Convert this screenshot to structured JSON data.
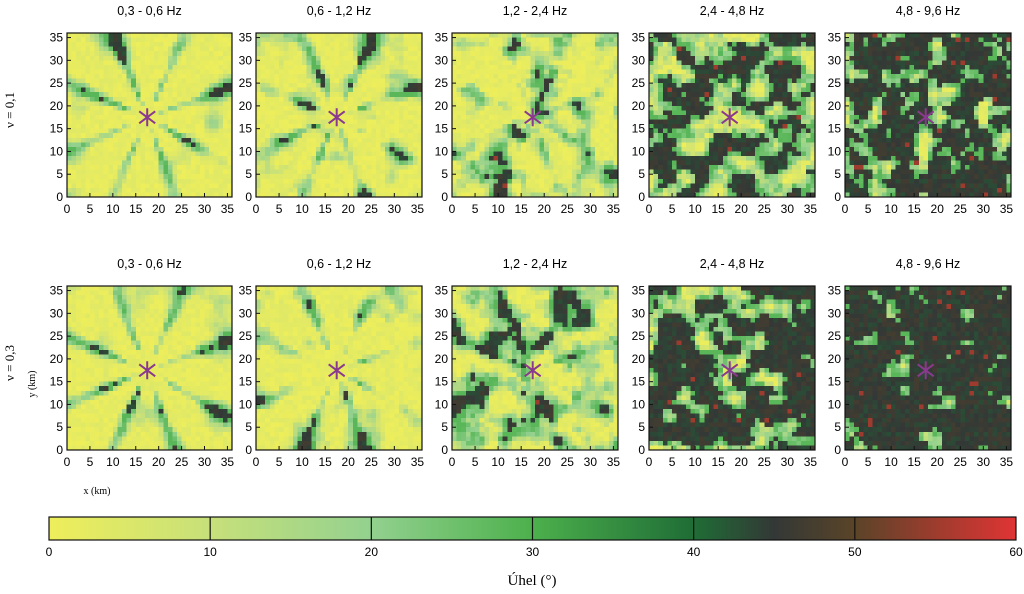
{
  "chart_data": {
    "type": "heatmap",
    "description_free": true,
    "row_labels": [
      "ν = 0,1",
      "ν = 0,3"
    ],
    "panel_titles": [
      "0,3 - 0,6 Hz",
      "0,6 - 1,2 Hz",
      "1,2 - 2,4 Hz",
      "2,4 - 4,8 Hz",
      "4,8 - 9,6 Hz"
    ],
    "xlabel": "x (km)",
    "ylabel": "y (km)",
    "xlim": [
      0,
      36
    ],
    "ylim": [
      0,
      36
    ],
    "x_ticks": [
      0,
      5,
      10,
      15,
      20,
      25,
      30,
      35
    ],
    "y_ticks": [
      0,
      5,
      10,
      15,
      20,
      25,
      30,
      35
    ],
    "epicenter": {
      "x": 17.5,
      "y": 17.5
    },
    "colorbar": {
      "label": "Úhel (°)",
      "range": [
        0,
        60
      ],
      "ticks": [
        0,
        10,
        20,
        30,
        40,
        50,
        60
      ],
      "stops": [
        {
          "value": 0,
          "color": "#eeee5a"
        },
        {
          "value": 10,
          "color": "#c7e07a"
        },
        {
          "value": 20,
          "color": "#93d18f"
        },
        {
          "value": 30,
          "color": "#4cb04c"
        },
        {
          "value": 40,
          "color": "#1f6d36"
        },
        {
          "value": 45,
          "color": "#333836"
        },
        {
          "value": 50,
          "color": "#5a4428"
        },
        {
          "value": 60,
          "color": "#e03434"
        }
      ]
    },
    "dark_fraction_by_band": [
      0.14,
      0.18,
      0.38,
      0.55,
      0.66
    ],
    "nu_increase": [
      0.0,
      0.02,
      0.06,
      0.08,
      0.08
    ]
  }
}
